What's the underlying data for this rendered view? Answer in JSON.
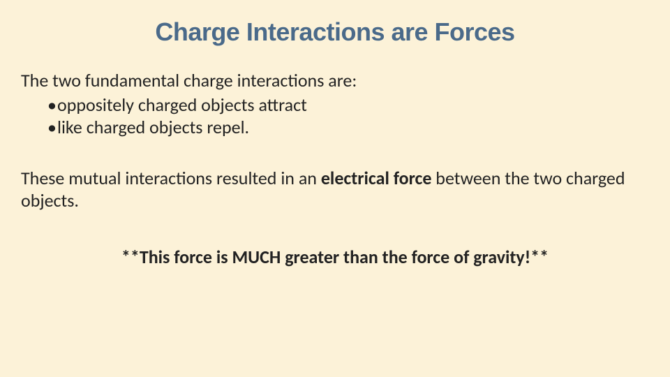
{
  "slide": {
    "background_color": "#fcf2d8",
    "title": {
      "text": "Charge Interactions are Forces",
      "color": "#4a6a8a",
      "font_size_pt": 27,
      "font_weight": "bold",
      "font_family": "Arial"
    },
    "body": {
      "font_size_pt": 20,
      "color": "#222222",
      "font_family": "Calibri",
      "intro": "The two fundamental charge interactions are:",
      "bullets": [
        "oppositely charged objects attract",
        "like charged objects repel."
      ],
      "bullet_glyph": "•",
      "para2_pre": "These mutual interactions resulted in an ",
      "para2_bold": "electrical force",
      "para2_post": " between the two charged objects.",
      "emphasis": "**This force is MUCH greater than the force of gravity!**"
    }
  }
}
